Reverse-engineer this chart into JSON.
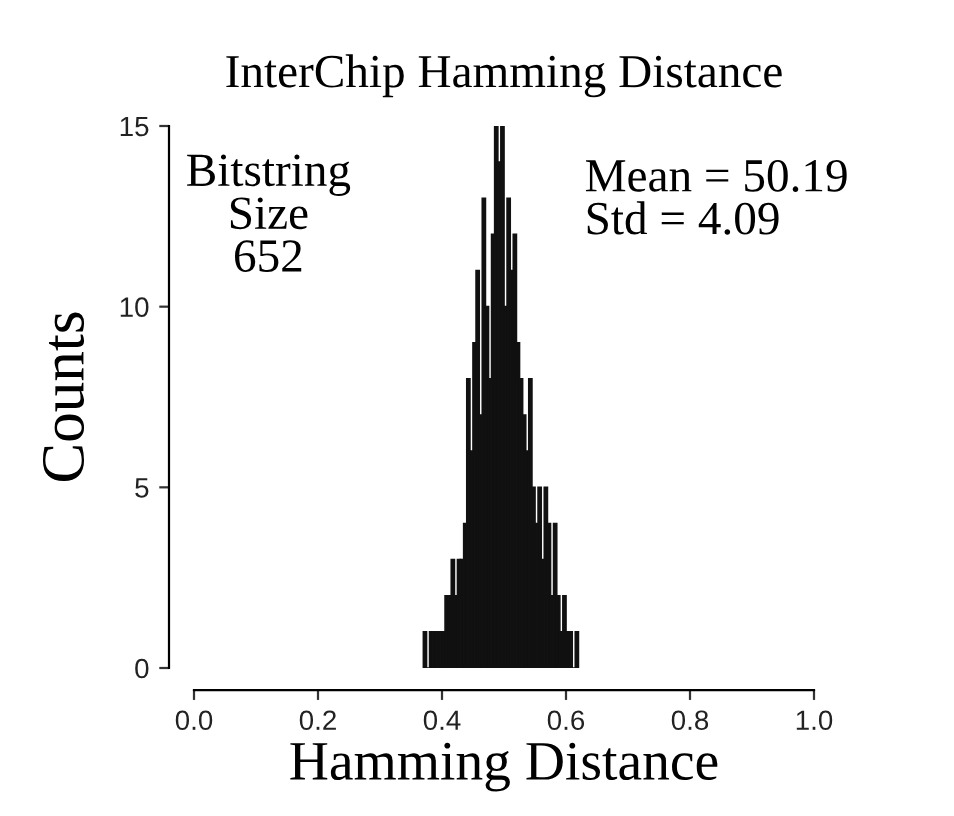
{
  "chart_data": {
    "type": "histogram",
    "title": "InterChip Hamming Distance",
    "xlabel": "Hamming Distance",
    "ylabel": "Counts",
    "bins": [
      0.37,
      0.375,
      0.38,
      0.385,
      0.39,
      0.395,
      0.4,
      0.405,
      0.41,
      0.415,
      0.42,
      0.425,
      0.43,
      0.435,
      0.44,
      0.445,
      0.45,
      0.455,
      0.46,
      0.465,
      0.47,
      0.475,
      0.48,
      0.485,
      0.49,
      0.495,
      0.5,
      0.505,
      0.51,
      0.515,
      0.52,
      0.525,
      0.53,
      0.535,
      0.54,
      0.545,
      0.55,
      0.555,
      0.56,
      0.565,
      0.57,
      0.575,
      0.58,
      0.585,
      0.59,
      0.595,
      0.6,
      0.605,
      0.61,
      0.615,
      0.62
    ],
    "values": [
      1,
      0,
      1,
      1,
      1,
      1,
      1,
      2,
      2,
      3,
      2,
      3,
      3,
      4,
      8,
      6,
      9,
      11,
      7,
      13,
      10,
      8,
      12,
      15,
      14,
      15,
      10,
      13,
      11,
      12,
      9,
      8,
      7,
      6,
      8,
      5,
      4,
      5,
      3,
      5,
      4,
      2,
      4,
      2,
      1,
      2,
      1,
      1,
      0,
      1
    ],
    "color": "#111111",
    "xlim": [
      0,
      1
    ],
    "xticks": [
      {
        "value": 0,
        "label": "0.0"
      },
      0.2,
      0.4,
      0.6,
      0.8,
      {
        "value": 1,
        "label": "1.0"
      }
    ],
    "ylim": [
      0,
      15
    ],
    "yticks": [
      0,
      5,
      10,
      15
    ],
    "grid": false,
    "annotations": [
      "Bitstring\nSize\n652",
      "Mean = 50.19\nStd = 4.09"
    ]
  }
}
